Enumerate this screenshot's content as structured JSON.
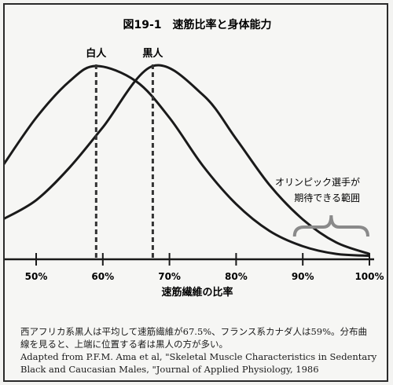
{
  "chart_data": {
    "type": "line",
    "title": "図19-1　速筋比率と身体能力",
    "xlabel": "速筋繊維の比率",
    "ylabel": "",
    "xlim": [
      45,
      100
    ],
    "xticks": [
      "50%",
      "60%",
      "70%",
      "80%",
      "90%",
      "100%"
    ],
    "tick_values": [
      50,
      60,
      70,
      80,
      90,
      100
    ],
    "series": [
      {
        "name": "白人",
        "mean": 59,
        "x": [
          45,
          50,
          55,
          59,
          65,
          70,
          75,
          80,
          85,
          90,
          95,
          100
        ],
        "y": [
          0.48,
          0.73,
          0.92,
          1.0,
          0.92,
          0.73,
          0.48,
          0.28,
          0.14,
          0.06,
          0.02,
          0.01
        ]
      },
      {
        "name": "黒人",
        "mean": 67.5,
        "x": [
          45,
          50,
          55,
          60,
          67.5,
          75,
          80,
          85,
          90,
          95,
          100
        ],
        "y": [
          0.2,
          0.3,
          0.47,
          0.68,
          1.0,
          0.85,
          0.62,
          0.38,
          0.2,
          0.08,
          0.02
        ]
      }
    ],
    "annotations": [
      {
        "text_line1": "オリンピック選手が",
        "text_line2": "期待できる範囲",
        "x_start": 89,
        "x_end": 100
      }
    ]
  },
  "caption": {
    "line1": "西アフリカ系黒人は平均して速筋繊維が67.5%、フランス系カナダ人は59%。分布曲",
    "line2": "線を見ると、上端に位置する者は黒人の方が多い。",
    "line3": "Adapted from P.F.M. Ama et al, \"Skeletal Muscle Characteristics in Sedentary",
    "line4": "Black and Caucasian Males, \"Journal of Applied Physiology, 1986"
  },
  "colors": {
    "ink": "#1a1a1a",
    "brace": "#8a8a8a",
    "background": "#f6f6f4"
  }
}
